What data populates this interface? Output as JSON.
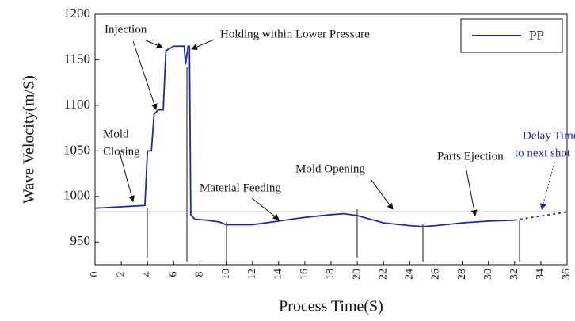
{
  "chart_data": {
    "type": "line",
    "xlabel": "Process Time(S)",
    "ylabel": "Wave Velocity(m/S)",
    "xlim": [
      0,
      36
    ],
    "ylim": [
      925,
      1200
    ],
    "xticks": [
      0,
      2,
      4,
      6,
      8,
      10,
      12,
      14,
      16,
      18,
      20,
      22,
      24,
      26,
      28,
      30,
      32,
      34,
      36
    ],
    "yticks": [
      950,
      1000,
      1050,
      1100,
      1150,
      1200
    ],
    "legend": "upper right",
    "series": [
      {
        "name": "PP",
        "color": "#1f2a9c",
        "x": [
          0,
          3.8,
          4.0,
          4.3,
          4.5,
          4.8,
          5.2,
          5.4,
          6.0,
          6.8,
          6.9,
          7.1,
          7.2,
          7.3,
          7.6,
          8.5,
          9.5,
          10,
          12,
          14,
          16,
          18,
          19,
          20,
          22,
          24,
          25,
          26,
          28,
          30,
          32
        ],
        "values": [
          987,
          990,
          1050,
          1050,
          1090,
          1095,
          1095,
          1160,
          1165,
          1165,
          1145,
          1165,
          1165,
          980,
          975,
          974,
          972,
          969,
          969,
          973,
          977,
          980,
          981,
          979,
          971,
          968,
          967,
          968,
          971,
          973,
          974
        ]
      }
    ],
    "delay_segment": {
      "x": [
        32,
        36
      ],
      "values": [
        974,
        983
      ]
    },
    "reference_line": 983,
    "annotations": [
      {
        "lines": [
          "Injection"
        ]
      },
      {
        "lines": [
          "Holding within Lower Pressure"
        ]
      },
      {
        "lines": [
          "Mold",
          "Closing"
        ]
      },
      {
        "lines": [
          "Material Feeding"
        ]
      },
      {
        "lines": [
          "Mold Opening"
        ]
      },
      {
        "lines": [
          "Parts Ejection"
        ]
      },
      {
        "lines": [
          "Delay Time",
          "to next shot"
        ]
      }
    ]
  }
}
